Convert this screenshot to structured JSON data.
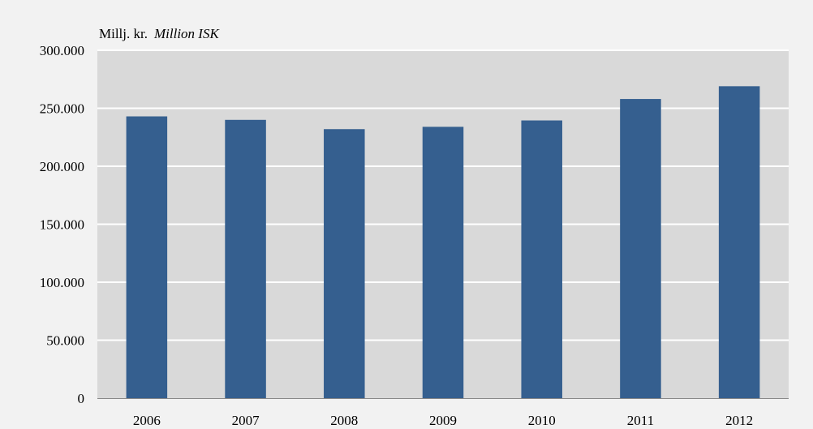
{
  "unit_label": {
    "local": "Millj. kr.",
    "english": "Million ISK"
  },
  "colors": {
    "page_background": "#f2f2f2",
    "plot_background": "#d9d9d9",
    "gridline": "#ffffff",
    "bar": "#355f8f",
    "axis": "#888888"
  },
  "chart_data": {
    "type": "bar",
    "title": "",
    "xlabel": "",
    "ylabel": "Millj. kr.  Million ISK",
    "categories": [
      "2006",
      "2007",
      "2008",
      "2009",
      "2010",
      "2011",
      "2012"
    ],
    "values": [
      243000,
      240000,
      232000,
      234000,
      239500,
      258000,
      269000
    ],
    "ylim": [
      0,
      300000
    ],
    "yticks": [
      0,
      50000,
      100000,
      150000,
      200000,
      250000,
      300000
    ],
    "ytick_labels": [
      "0",
      "50.000",
      "100.000",
      "150.000",
      "200.000",
      "250.000",
      "300.000"
    ],
    "grid": true,
    "legend": "none"
  }
}
